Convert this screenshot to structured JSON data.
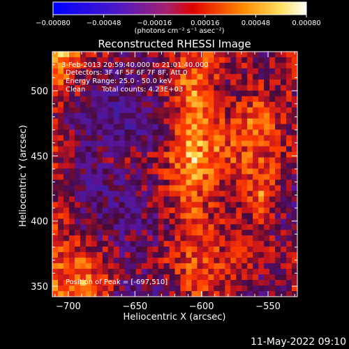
{
  "chart_data": {
    "type": "heatmap",
    "title": "Reconstructed RHESSI Image",
    "xlabel": "Heliocentric X (arcsec)",
    "ylabel": "Heliocentric Y (arcsec)",
    "xlim": [
      -712,
      -528
    ],
    "ylim": [
      342,
      530
    ],
    "x_ticks": [
      -700,
      -650,
      -600,
      -550
    ],
    "x_tick_labels": [
      "−700",
      "−650",
      "−600",
      "−550"
    ],
    "y_ticks": [
      350,
      400,
      450,
      500
    ],
    "y_tick_labels": [
      "350",
      "400",
      "450",
      "500"
    ],
    "colorbar": {
      "range": [
        -0.0008,
        0.0008
      ],
      "tick_values": [
        -0.0008,
        -0.00048,
        -0.00016,
        0.00016,
        0.00048,
        0.0008
      ],
      "tick_labels": [
        "−0.00080",
        "−0.00048",
        "−0.00016",
        "0.00016",
        "0.00048",
        "0.00080"
      ],
      "unit_label": "(photons cm⁻² s⁻¹ asec⁻²)",
      "colors": [
        "#0000ff",
        "#5a1ab8",
        "#a0205a",
        "#ff0000",
        "#ff8800",
        "#ffffff"
      ]
    },
    "annotations": {
      "time_range": "3-Feb-2013 20:59:40.000 to 21:01:40.000",
      "detectors": "Detectors: 3F 4F 5F 6F 7F 8F, Att 0",
      "energy": "Energy Range: 25.0 - 50.0 keV",
      "method": "Clean",
      "total_counts": "Total counts: 4.23E+03",
      "peak": "Position of Peak = [-697,510]"
    },
    "peak_position": [
      -697,
      510
    ]
  },
  "footer": {
    "timestamp": "11-May-2022 09:10"
  }
}
